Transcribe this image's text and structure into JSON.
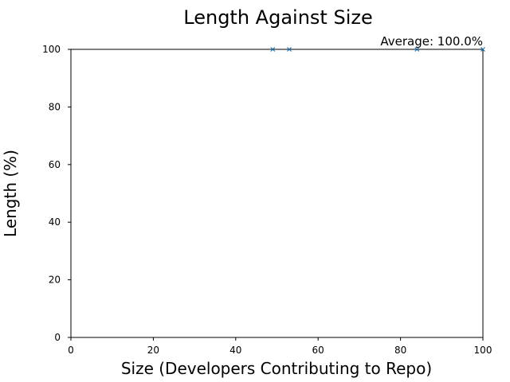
{
  "chart_data": {
    "type": "scatter",
    "title": "Length Against Size",
    "annotation": "Average: 100.0%",
    "xlabel": "Size (Developers Contributing to Repo)",
    "ylabel": "Length (%)",
    "xlim": [
      0,
      100
    ],
    "ylim": [
      0,
      100
    ],
    "xticks": [
      0,
      20,
      40,
      60,
      80,
      100
    ],
    "yticks": [
      0,
      20,
      40,
      60,
      80,
      100
    ],
    "grid": false,
    "legend": "none",
    "marker": "x",
    "color": "#1f77b4",
    "series": [
      {
        "x": [
          49,
          53,
          84,
          100
        ],
        "y": [
          100,
          100,
          100,
          100
        ]
      }
    ]
  }
}
